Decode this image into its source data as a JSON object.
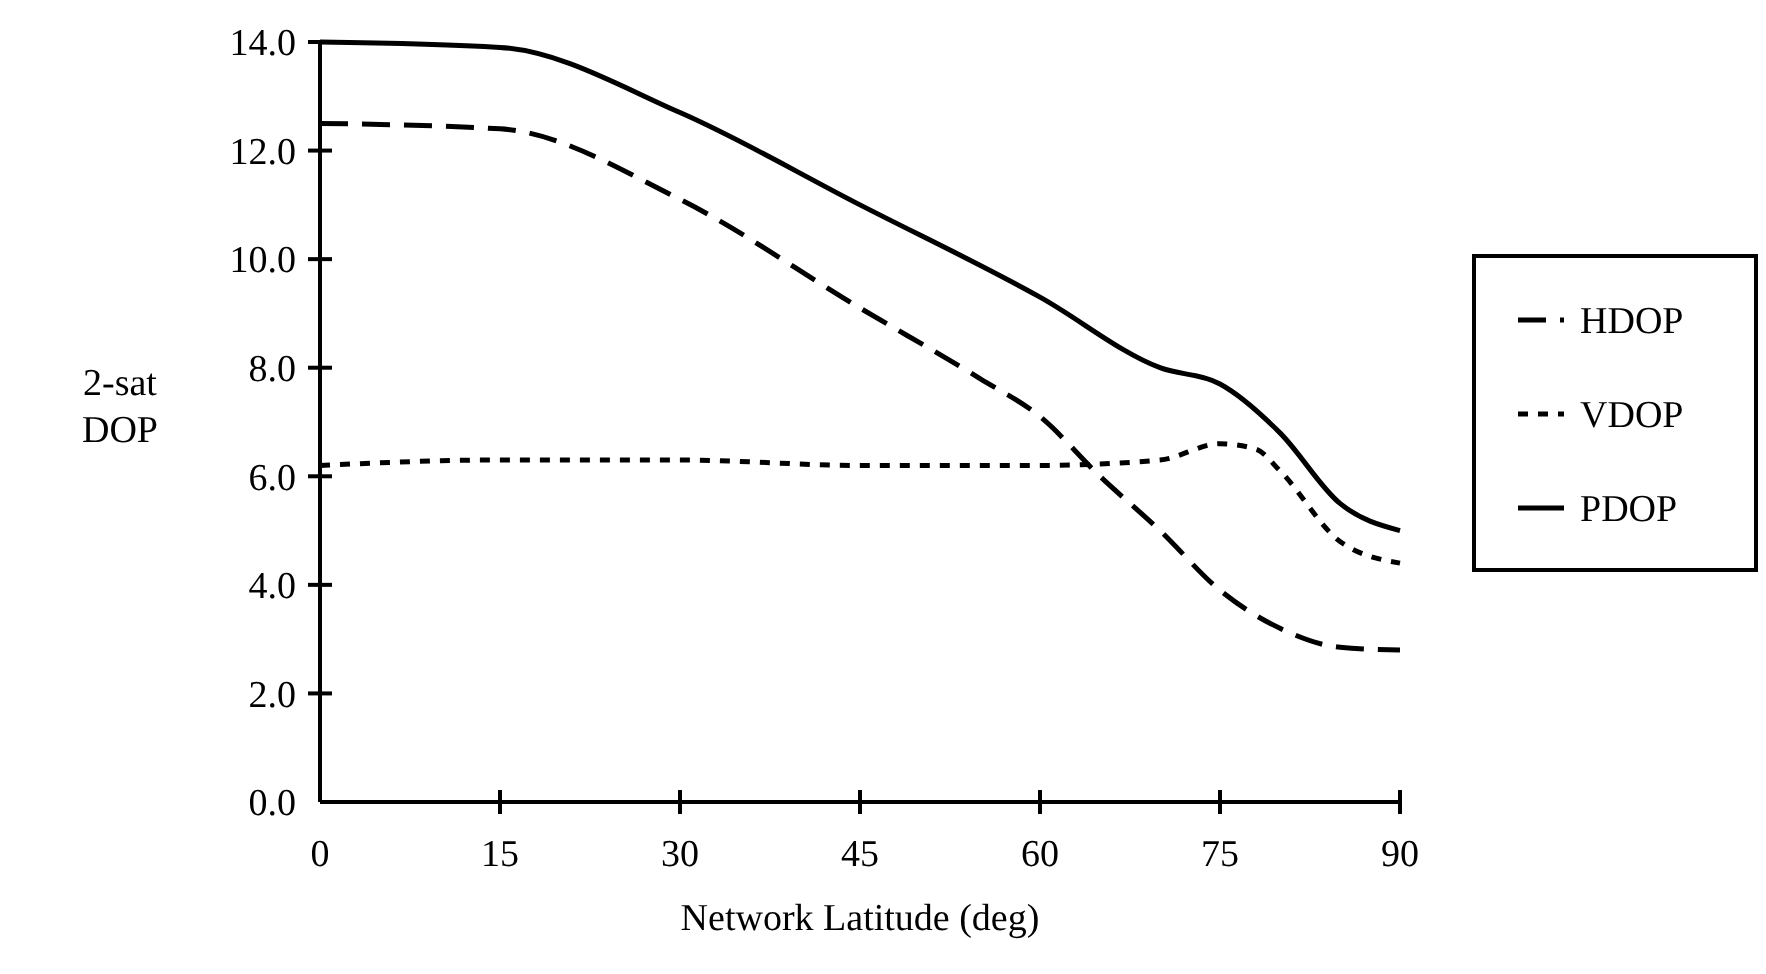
{
  "chart_data": {
    "type": "line",
    "xlabel": "Network Latitude (deg)",
    "ylabel": "2-sat DOP",
    "xlim": [
      0,
      90
    ],
    "xticks": [
      0,
      15,
      30,
      45,
      60,
      75,
      90
    ],
    "ylim": [
      0,
      14
    ],
    "yticks": [
      {
        "value": 0,
        "label": "0.0"
      },
      {
        "value": 2,
        "label": "2.0"
      },
      {
        "value": 4,
        "label": "4.0"
      },
      {
        "value": 6,
        "label": "6.0"
      },
      {
        "value": 8,
        "label": "8.0"
      },
      {
        "value": 10,
        "label": "10.0"
      },
      {
        "value": 12,
        "label": "12.0"
      },
      {
        "value": 14,
        "label": "14.0"
      }
    ],
    "grid": false,
    "legend": "right",
    "marker": "none",
    "series": [
      {
        "name": "HDOP",
        "color": "#000000",
        "line_style": "dashed",
        "x": [
          0,
          15,
          30,
          45,
          55,
          60,
          65,
          70,
          75,
          80,
          85,
          90
        ],
        "values": [
          12.5,
          12.4,
          11.1,
          9.1,
          7.8,
          7.1,
          6.0,
          5.0,
          3.9,
          3.2,
          2.85,
          2.8
        ]
      },
      {
        "name": "VDOP",
        "color": "#000000",
        "line_style": "dotted",
        "x": [
          0,
          15,
          30,
          45,
          60,
          70,
          75,
          78,
          80,
          85,
          90
        ],
        "values": [
          6.2,
          6.3,
          6.3,
          6.2,
          6.2,
          6.3,
          6.6,
          6.5,
          6.1,
          4.8,
          4.4
        ]
      },
      {
        "name": "PDOP",
        "color": "#000000",
        "line_style": "solid",
        "x": [
          0,
          15,
          30,
          45,
          60,
          70,
          75,
          80,
          85,
          90
        ],
        "values": [
          14.0,
          13.9,
          12.7,
          11.0,
          9.3,
          8.0,
          7.7,
          6.8,
          5.5,
          5.0
        ]
      }
    ]
  }
}
